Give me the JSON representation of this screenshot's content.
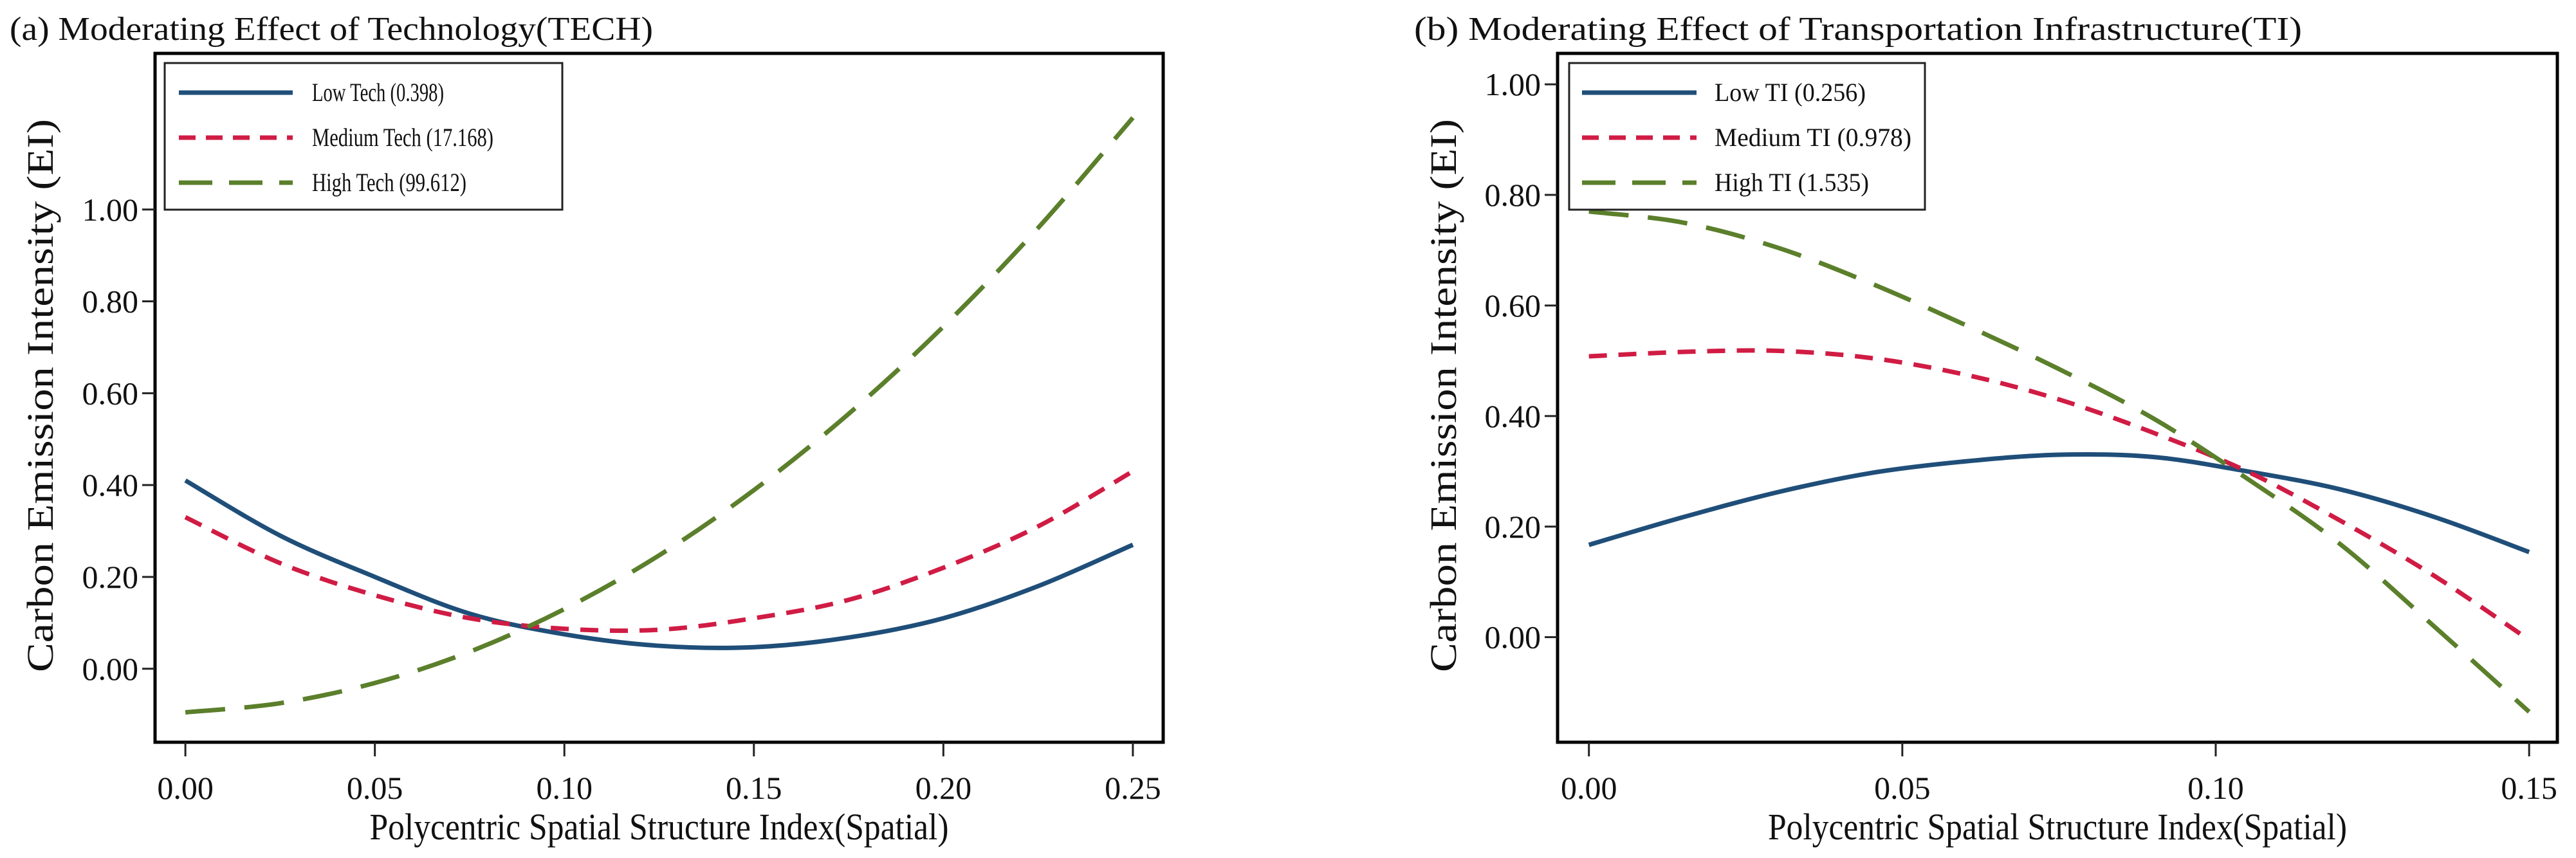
{
  "colors": {
    "low": "#1f4e79",
    "medium": "#d01c44",
    "high": "#5b7f2b"
  },
  "chart_data": [
    {
      "type": "line",
      "title": "(a) Moderating Effect of Technology(TECH)",
      "xlabel": "Polycentric Spatial Structure Index(Spatial)",
      "ylabel": "Carbon Emission Intensity (EI)",
      "xlim": [
        -0.008,
        0.258
      ],
      "ylim": [
        -0.16,
        1.34
      ],
      "xticks": [
        0,
        0.05,
        0.1,
        0.15,
        0.2,
        0.25
      ],
      "xtick_labels": [
        "0.00",
        "0.05",
        "0.10",
        "0.15",
        "0.20",
        "0.25"
      ],
      "yticks": [
        0,
        0.2,
        0.4,
        0.6,
        0.8,
        1.0
      ],
      "ytick_labels": [
        "0.00",
        "0.20",
        "0.40",
        "0.60",
        "0.80",
        "1.00"
      ],
      "grid": false,
      "legend_position": "top-left",
      "x": [
        0,
        0.025,
        0.05,
        0.075,
        0.1,
        0.125,
        0.15,
        0.175,
        0.2,
        0.225,
        0.25
      ],
      "series": [
        {
          "name": "Low Tech (0.398)",
          "style": "solid",
          "color_key": "low",
          "values": [
            0.41,
            0.29,
            0.2,
            0.12,
            0.075,
            0.05,
            0.047,
            0.068,
            0.11,
            0.18,
            0.27
          ]
        },
        {
          "name": "Medium Tech (17.168)",
          "style": "short-dash",
          "color_key": "medium",
          "values": [
            0.33,
            0.23,
            0.16,
            0.11,
            0.087,
            0.085,
            0.11,
            0.15,
            0.22,
            0.31,
            0.43
          ]
        },
        {
          "name": "High Tech (99.612)",
          "style": "long-dash",
          "color_key": "high",
          "values": [
            -0.095,
            -0.075,
            -0.031,
            0.037,
            0.13,
            0.247,
            0.389,
            0.555,
            0.745,
            0.96,
            1.2
          ]
        }
      ]
    },
    {
      "type": "line",
      "title": "(b) Moderating Effect of Transportation Infrastructure(TI)",
      "xlabel": "Polycentric Spatial Structure Index(Spatial)",
      "ylabel": "Carbon Emission Intensity (EI)",
      "xlim": [
        -0.005,
        0.1545
      ],
      "ylim": [
        -0.19,
        1.056
      ],
      "xticks": [
        0,
        0.05,
        0.1,
        0.15
      ],
      "xtick_labels": [
        "0.00",
        "0.05",
        "0.10",
        "0.15"
      ],
      "yticks": [
        0,
        0.2,
        0.4,
        0.6,
        0.8,
        1.0
      ],
      "ytick_labels": [
        "0.00",
        "0.20",
        "0.40",
        "0.60",
        "0.80",
        "1.00"
      ],
      "grid": false,
      "legend_position": "top-left",
      "x": [
        0,
        0.015,
        0.03,
        0.045,
        0.06,
        0.075,
        0.09,
        0.105,
        0.12,
        0.135,
        0.15
      ],
      "series": [
        {
          "name": "Low TI (0.256)",
          "style": "solid",
          "color_key": "low",
          "values": [
            0.167,
            0.217,
            0.262,
            0.297,
            0.318,
            0.33,
            0.326,
            0.3,
            0.267,
            0.217,
            0.154
          ]
        },
        {
          "name": "Medium TI (0.978)",
          "style": "short-dash",
          "color_key": "medium",
          "values": [
            0.508,
            0.516,
            0.518,
            0.505,
            0.475,
            0.43,
            0.37,
            0.3,
            0.21,
            0.11,
            -0.005
          ]
        },
        {
          "name": "High TI (1.535)",
          "style": "long-dash",
          "color_key": "high",
          "values": [
            0.77,
            0.75,
            0.705,
            0.64,
            0.565,
            0.485,
            0.396,
            0.287,
            0.167,
            0.018,
            -0.135
          ]
        }
      ]
    }
  ]
}
